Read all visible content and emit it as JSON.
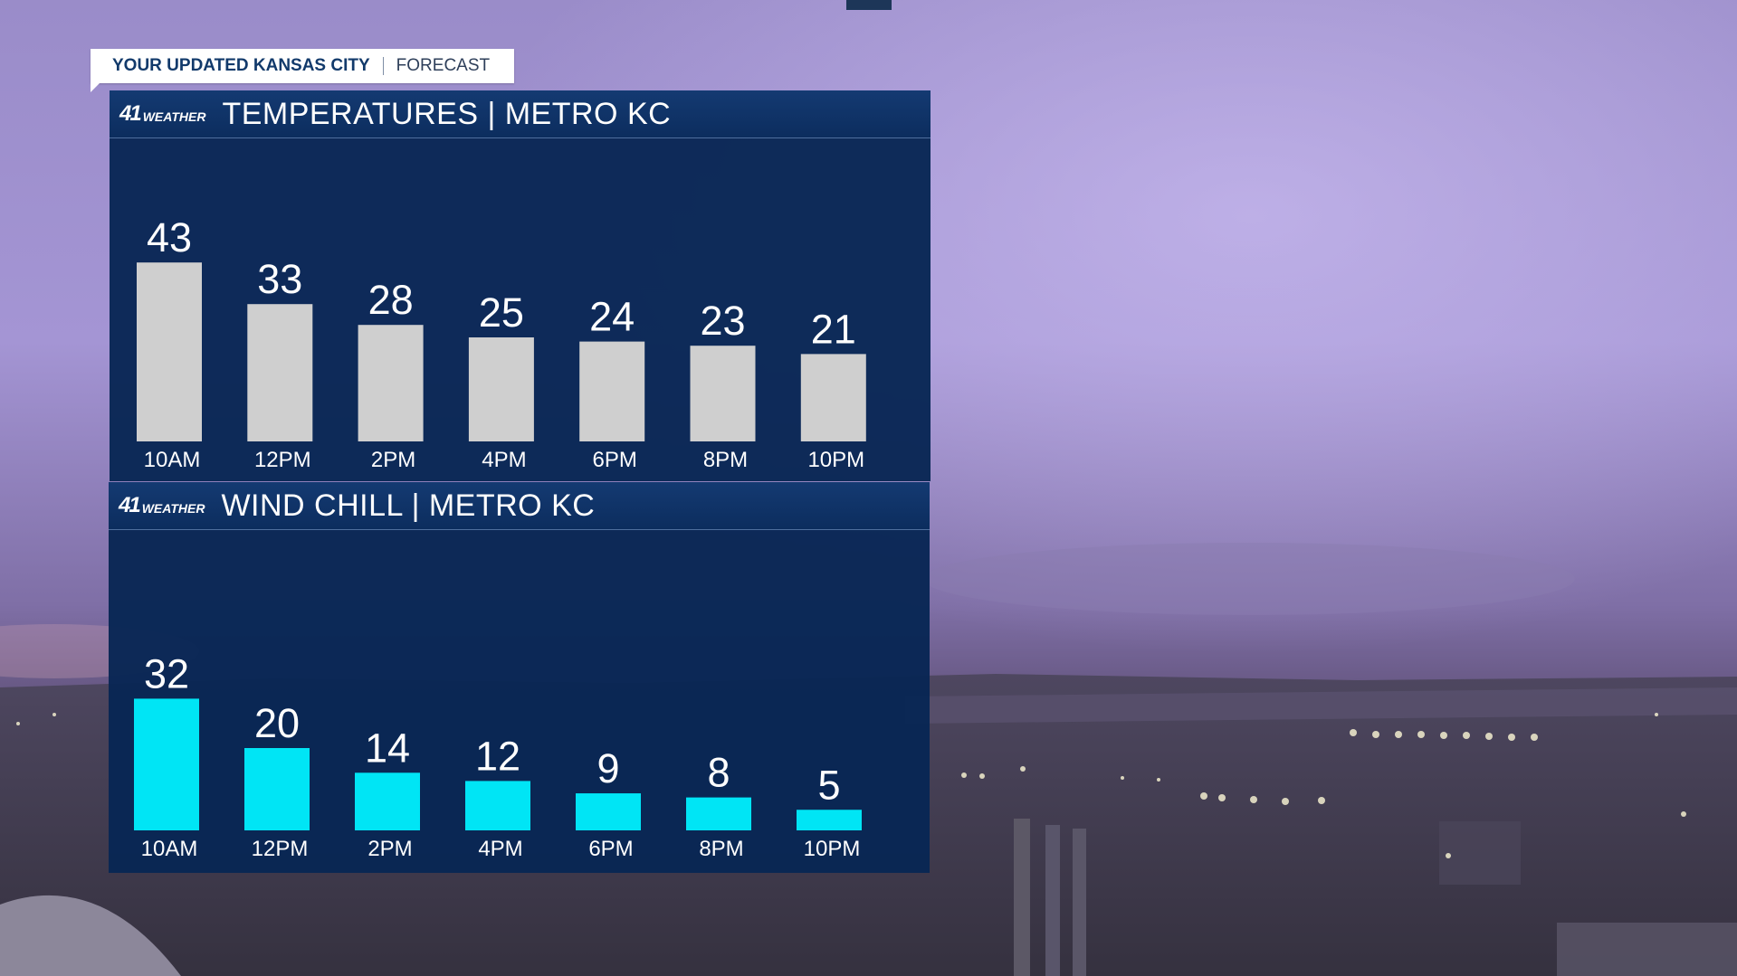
{
  "banner": {
    "main": "YOUR UPDATED KANSAS CITY",
    "sub": "FORECAST"
  },
  "panels": [
    {
      "logo_num": "41",
      "logo_word": "WEATHER",
      "title": "TEMPERATURES | METRO KC"
    },
    {
      "logo_num": "41",
      "logo_word": "WEATHER",
      "title": "WIND CHILL | METRO KC"
    }
  ],
  "chart_data": [
    {
      "type": "bar",
      "title": "TEMPERATURES | METRO KC",
      "categories": [
        "10AM",
        "12PM",
        "2PM",
        "4PM",
        "6PM",
        "8PM",
        "10PM"
      ],
      "values": [
        43,
        33,
        28,
        25,
        24,
        23,
        21
      ],
      "bar_color": "#cfcfcf",
      "grid": false,
      "legend": "none"
    },
    {
      "type": "bar",
      "title": "WIND CHILL | METRO KC",
      "categories": [
        "10AM",
        "12PM",
        "2PM",
        "4PM",
        "6PM",
        "8PM",
        "10PM"
      ],
      "values": [
        32,
        20,
        14,
        12,
        9,
        8,
        5
      ],
      "bar_color": "#00e5f5",
      "grid": false,
      "legend": "none"
    }
  ],
  "colors": {
    "panel": "#082654",
    "header": "#123a6e",
    "banner_text": "#123a6b"
  }
}
